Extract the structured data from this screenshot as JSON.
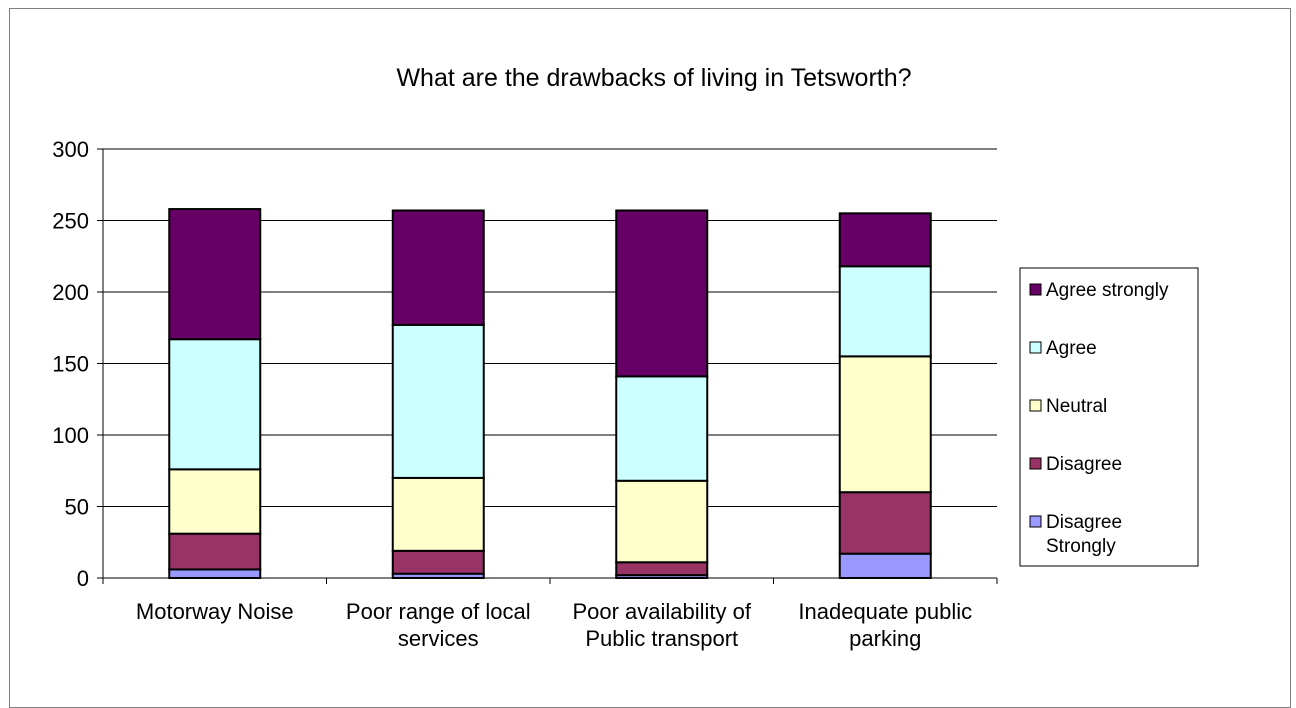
{
  "chart_data": {
    "type": "bar",
    "stacked": true,
    "title": "What are the drawbacks of living in Tetsworth?",
    "xlabel": "",
    "ylabel": "",
    "ylim": [
      0,
      300
    ],
    "yticks": [
      "0",
      "50",
      "100",
      "150",
      "200",
      "250",
      "300"
    ],
    "grid": true,
    "legend_position": "right",
    "categories": [
      [
        "Motorway Noise"
      ],
      [
        "Poor range of local",
        "services"
      ],
      [
        "Poor availability of",
        "Public transport"
      ],
      [
        "Inadequate public",
        "parking"
      ]
    ],
    "series": [
      {
        "name": "Disagree Strongly",
        "legend_lines": [
          "Disagree",
          "Strongly"
        ],
        "color": "#9999ff",
        "values": [
          6,
          3,
          2,
          17
        ]
      },
      {
        "name": "Disagree",
        "legend_lines": [
          "Disagree"
        ],
        "color": "#993366",
        "values": [
          25,
          16,
          9,
          43
        ]
      },
      {
        "name": "Neutral",
        "legend_lines": [
          "Neutral"
        ],
        "color": "#ffffcc",
        "values": [
          45,
          51,
          57,
          95
        ]
      },
      {
        "name": "Agree",
        "legend_lines": [
          "Agree"
        ],
        "color": "#ccffff",
        "values": [
          91,
          107,
          73,
          63
        ]
      },
      {
        "name": "Agree strongly",
        "legend_lines": [
          "Agree strongly"
        ],
        "color": "#660066",
        "values": [
          91,
          80,
          116,
          37
        ]
      }
    ]
  }
}
